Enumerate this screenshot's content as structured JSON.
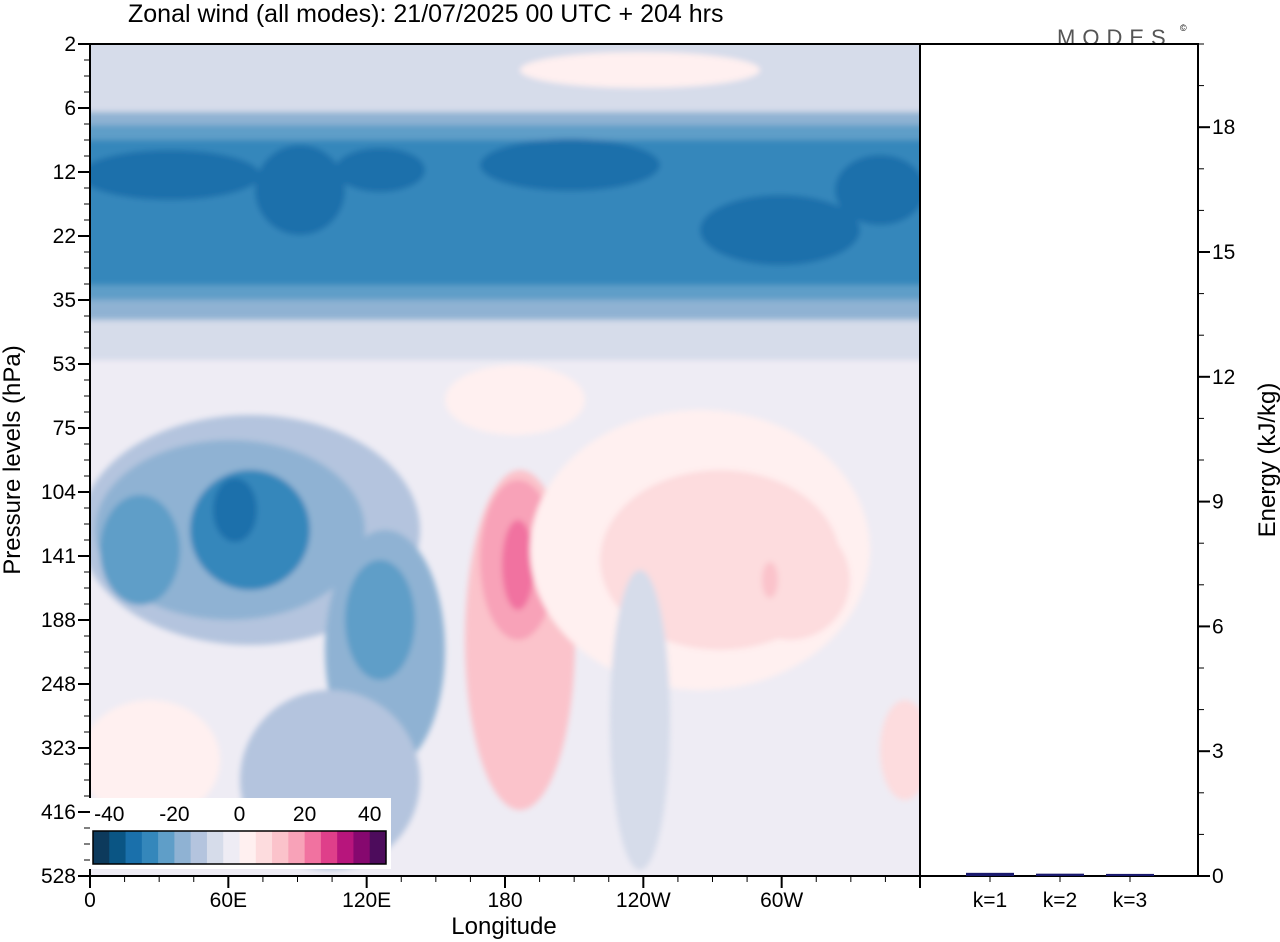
{
  "chart_data": [
    {
      "type": "heatmap",
      "title": "Zonal wind (all modes):  21/07/2025  00 UTC  + 204 hrs",
      "brand": "MODES",
      "brand_mark": "©",
      "xlabel": "Longitude",
      "ylabel": "Pressure levels (hPa)",
      "x_ticks": [
        "0",
        "60E",
        "120E",
        "180",
        "120W",
        "60W"
      ],
      "x_tick_values": [
        0,
        60,
        120,
        180,
        240,
        300
      ],
      "x_range": [
        0,
        360
      ],
      "y_ticks": [
        "2",
        "6",
        "12",
        "22",
        "35",
        "53",
        "75",
        "104",
        "141",
        "188",
        "248",
        "323",
        "416",
        "528"
      ],
      "colorbar": {
        "tick_labels": [
          "-40",
          "-20",
          "0",
          "20",
          "40"
        ],
        "tick_values": [
          -40,
          -20,
          0,
          20,
          40
        ],
        "range": [
          -45,
          45
        ],
        "colors": [
          "#0d3a5c",
          "#0a5584",
          "#1a70ab",
          "#3487bb",
          "#5f9ec8",
          "#8fb2d3",
          "#b4c4de",
          "#d6dcea",
          "#eeecf4",
          "#fff0f0",
          "#fddcde",
          "#fbc3cb",
          "#f8a2b8",
          "#f172a0",
          "#df3f8a",
          "#b7157c",
          "#86086f",
          "#4d0c5c"
        ]
      },
      "regions": [
        {
          "name": "stratospheric easterly jet",
          "lon": [
            0,
            360
          ],
          "pressure_hPa": [
            8,
            40
          ],
          "value": -30
        },
        {
          "name": "core easterly 12-22 hPa",
          "lon": [
            0,
            330
          ],
          "pressure_hPa": [
            10,
            18
          ],
          "value": -38
        },
        {
          "name": "upper stratosphere",
          "lon": [
            0,
            360
          ],
          "pressure_hPa": [
            2,
            6
          ],
          "value": -5
        },
        {
          "name": "easterly cell near 60E",
          "lon": [
            40,
            95
          ],
          "pressure_hPa": [
            90,
            200
          ],
          "value": -33
        },
        {
          "name": "easterly cell near 120E",
          "lon": [
            105,
            150
          ],
          "pressure_hPa": [
            120,
            330
          ],
          "value": -25
        },
        {
          "name": "westerly maximum near 180",
          "lon": [
            172,
            200
          ],
          "pressure_hPa": [
            100,
            220
          ],
          "value": 25
        },
        {
          "name": "weak westerlies 140W-50W",
          "lon": [
            210,
            330
          ],
          "pressure_hPa": [
            80,
            330
          ],
          "value": 7
        }
      ]
    },
    {
      "type": "bar",
      "ylabel": "Energy (kJ/kg)",
      "categories": [
        "k=1",
        "k=2",
        "k=3"
      ],
      "values": [
        0.04,
        0.02,
        0.0
      ],
      "y_ticks": [
        "0",
        "3",
        "6",
        "9",
        "12",
        "15",
        "18"
      ],
      "y_tick_values": [
        0,
        3,
        6,
        9,
        12,
        15,
        18
      ],
      "ylim": [
        0,
        20
      ],
      "bar_color": "#1a1a6e"
    }
  ]
}
